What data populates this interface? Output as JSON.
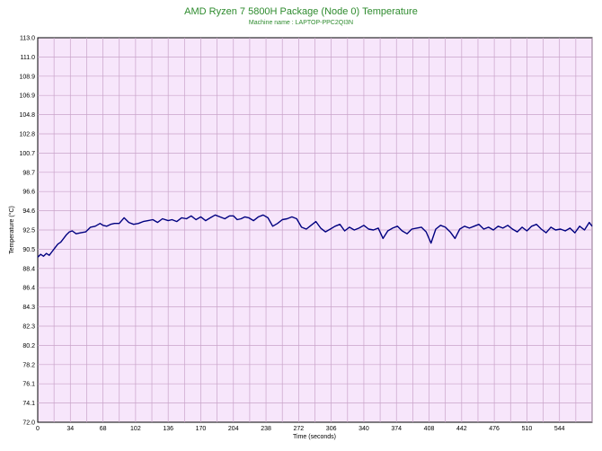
{
  "chart_data": {
    "type": "line",
    "title": "AMD Ryzen 7 5800H Package (Node 0) Temperature",
    "subtitle": "Machine name : LAPTOP-PPC2QI3N",
    "xlabel": "Time (seconds)",
    "ylabel": "Temperature (°C)",
    "x_ticks": [
      "0",
      "34",
      "68",
      "102",
      "136",
      "170",
      "204",
      "238",
      "272",
      "306",
      "340",
      "374",
      "408",
      "442",
      "476",
      "510",
      "544"
    ],
    "y_ticks": [
      "72.0",
      "74.1",
      "76.1",
      "78.2",
      "80.2",
      "82.3",
      "84.3",
      "86.4",
      "88.4",
      "90.5",
      "92.5",
      "94.6",
      "96.6",
      "98.7",
      "100.7",
      "102.8",
      "104.8",
      "106.9",
      "108.9",
      "111.0",
      "113.0"
    ],
    "xlim": [
      0,
      578
    ],
    "ylim": [
      72.0,
      113.0
    ],
    "grid": true,
    "colors": {
      "line": "#000080",
      "plot_bg": "#f7e6fb",
      "grid": "#c9a3c9",
      "title": "#2e8b2e"
    },
    "series": [
      {
        "x": [
          0,
          3,
          6,
          9,
          12,
          15,
          18,
          21,
          24,
          27,
          30,
          33,
          36,
          40,
          45,
          50,
          55,
          60,
          65,
          68,
          72,
          76,
          80,
          85,
          90,
          95,
          100,
          105,
          110,
          115,
          120,
          125,
          130,
          136,
          140,
          145,
          150,
          155,
          160,
          165,
          170,
          175,
          180,
          185,
          190,
          195,
          200,
          204,
          208,
          212,
          216,
          220,
          225,
          230,
          235,
          240,
          245,
          250,
          255,
          260,
          265,
          270,
          275,
          280,
          285,
          290,
          295,
          300,
          305,
          310,
          315,
          320,
          325,
          330,
          335,
          340,
          345,
          350,
          355,
          360,
          365,
          370,
          375,
          380,
          385,
          390,
          395,
          400,
          405,
          410,
          415,
          420,
          425,
          430,
          435,
          440,
          445,
          450,
          455,
          460,
          465,
          470,
          475,
          480,
          485,
          490,
          495,
          500,
          505,
          510,
          515,
          520,
          525,
          530,
          535,
          540,
          545,
          550,
          555,
          560,
          565,
          570,
          575,
          578
        ],
        "y": [
          89.6,
          89.9,
          89.7,
          90.0,
          89.8,
          90.2,
          90.6,
          91.0,
          91.2,
          91.6,
          92.0,
          92.3,
          92.4,
          92.1,
          92.2,
          92.3,
          92.8,
          92.9,
          93.2,
          93.0,
          92.9,
          93.1,
          93.2,
          93.2,
          93.8,
          93.3,
          93.1,
          93.2,
          93.4,
          93.5,
          93.6,
          93.3,
          93.7,
          93.5,
          93.6,
          93.4,
          93.8,
          93.7,
          94.0,
          93.6,
          93.9,
          93.5,
          93.8,
          94.1,
          93.9,
          93.7,
          94.0,
          94.0,
          93.6,
          93.7,
          93.9,
          93.8,
          93.5,
          93.9,
          94.1,
          93.8,
          92.9,
          93.2,
          93.6,
          93.7,
          93.9,
          93.7,
          92.8,
          92.6,
          93.0,
          93.4,
          92.7,
          92.3,
          92.6,
          92.9,
          93.1,
          92.4,
          92.8,
          92.5,
          92.7,
          93.0,
          92.6,
          92.5,
          92.7,
          91.6,
          92.4,
          92.7,
          92.9,
          92.4,
          92.1,
          92.6,
          92.7,
          92.8,
          92.3,
          91.1,
          92.6,
          93.0,
          92.8,
          92.3,
          91.6,
          92.6,
          92.9,
          92.7,
          92.9,
          93.1,
          92.6,
          92.8,
          92.5,
          92.9,
          92.7,
          93.0,
          92.6,
          92.3,
          92.8,
          92.4,
          92.9,
          93.1,
          92.6,
          92.2,
          92.8,
          92.5,
          92.6,
          92.4,
          92.7,
          92.2,
          92.9,
          92.5,
          93.3,
          92.9
        ]
      }
    ]
  }
}
